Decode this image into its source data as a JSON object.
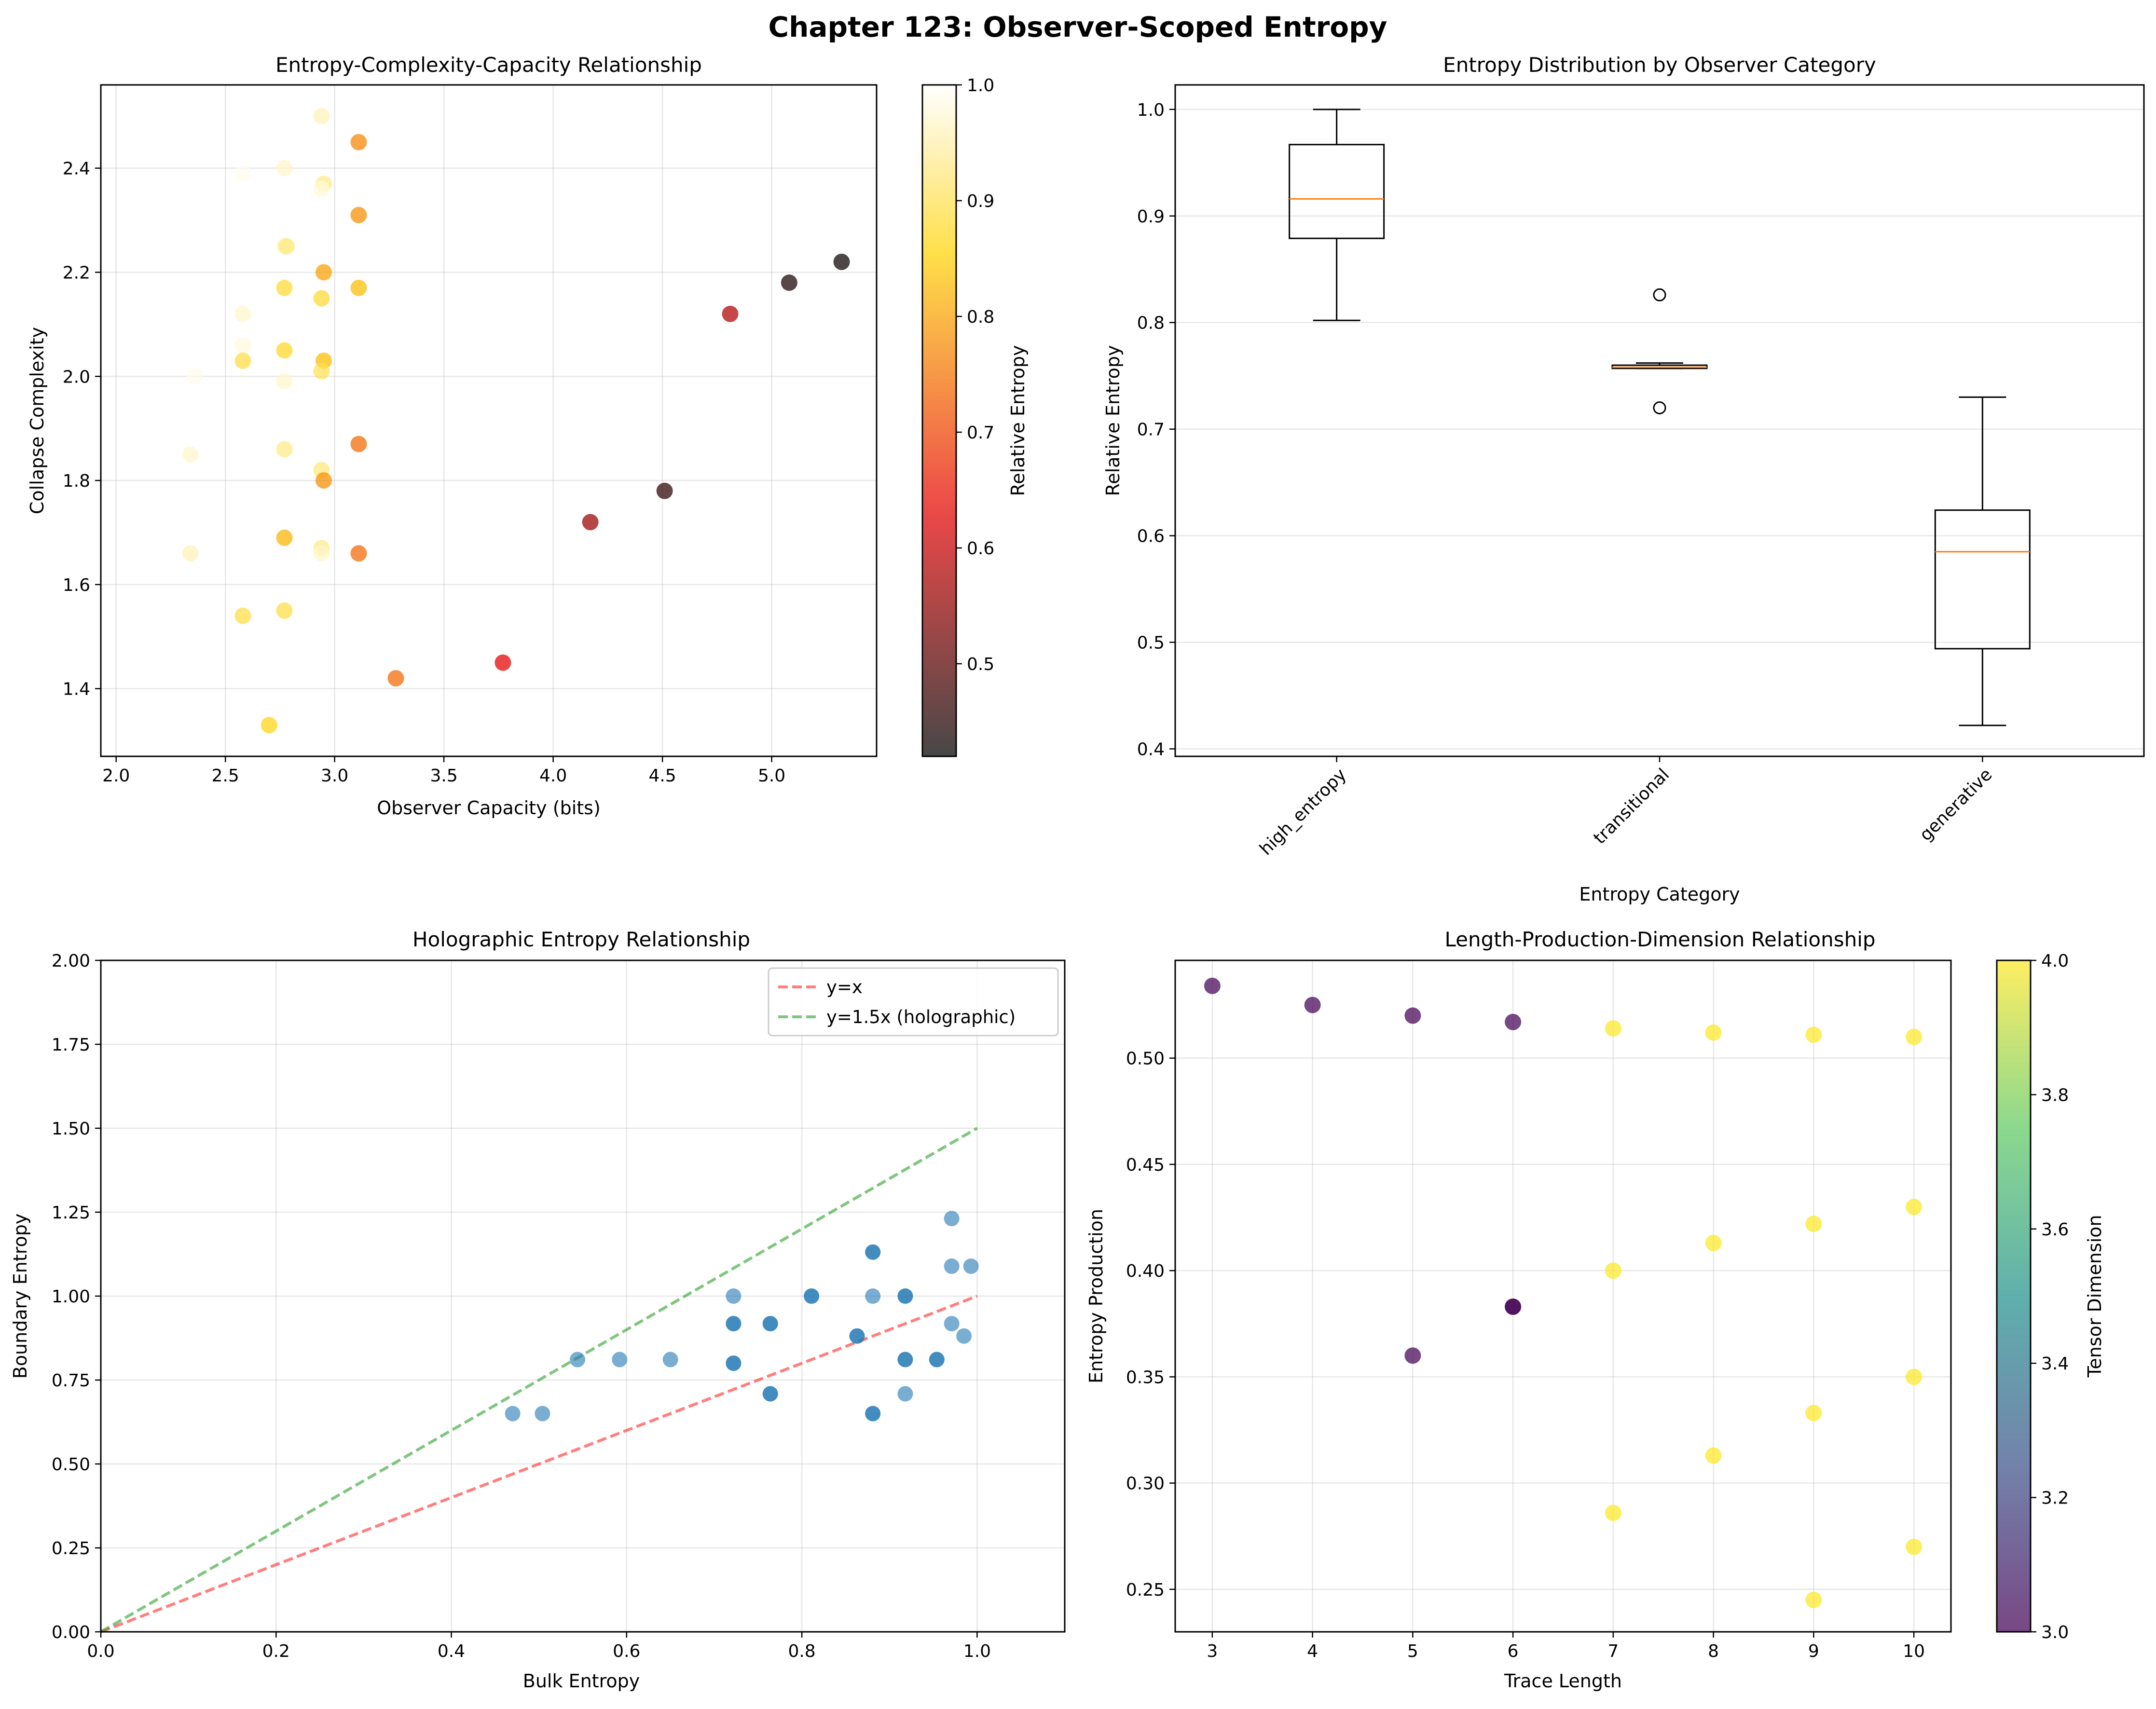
{
  "figure": {
    "title": "Chapter 123: Observer-Scoped Entropy"
  },
  "colors": {
    "grid": "#b0b0b0",
    "red_line": "#ff0000",
    "green_line": "#2ca02c",
    "blue_points": "#1f77b4",
    "median": "#ff7f0e"
  },
  "chart_data": [
    {
      "id": "p1",
      "type": "scatter",
      "title": "Entropy-Complexity-Capacity Relationship",
      "xlabel": "Observer Capacity (bits)",
      "ylabel": "Collapse Complexity",
      "xlim": [
        1.93,
        5.48
      ],
      "ylim": [
        1.27,
        2.56
      ],
      "xticks": [
        "2.0",
        "2.5",
        "3.0",
        "3.5",
        "4.0",
        "4.5",
        "5.0"
      ],
      "xtick_values": [
        2.0,
        2.5,
        3.0,
        3.5,
        4.0,
        4.5,
        5.0
      ],
      "yticks": [
        "1.4",
        "1.6",
        "1.8",
        "2.0",
        "2.2",
        "2.4"
      ],
      "ytick_values": [
        1.4,
        1.6,
        1.8,
        2.0,
        2.2,
        2.4
      ],
      "colorbar": {
        "label": "Relative Entropy",
        "range": [
          0.42,
          1.0
        ],
        "ticks": [
          "0.5",
          "0.6",
          "0.7",
          "0.8",
          "0.9",
          "1.0"
        ],
        "tick_values": [
          0.5,
          0.6,
          0.7,
          0.8,
          0.9,
          1.0
        ]
      },
      "points": [
        [
          2.94,
          2.5,
          0.96
        ],
        [
          3.11,
          2.45,
          0.77
        ],
        [
          2.58,
          2.39,
          0.99
        ],
        [
          2.77,
          2.4,
          0.97
        ],
        [
          2.95,
          2.37,
          0.93
        ],
        [
          2.94,
          2.36,
          0.98
        ],
        [
          3.11,
          2.31,
          0.78
        ],
        [
          2.77,
          2.25,
          0.97
        ],
        [
          2.78,
          2.25,
          0.92
        ],
        [
          5.32,
          2.22,
          0.43
        ],
        [
          2.95,
          2.2,
          0.8
        ],
        [
          5.08,
          2.18,
          0.44
        ],
        [
          2.77,
          2.17,
          0.88
        ],
        [
          3.11,
          2.17,
          0.83
        ],
        [
          2.94,
          2.15,
          0.88
        ],
        [
          2.58,
          2.12,
          0.97
        ],
        [
          4.81,
          2.12,
          0.58
        ],
        [
          2.58,
          2.06,
          0.98
        ],
        [
          2.77,
          2.05,
          0.87
        ],
        [
          2.58,
          2.03,
          0.89
        ],
        [
          2.95,
          2.03,
          0.83
        ],
        [
          2.94,
          2.01,
          0.9
        ],
        [
          2.36,
          2.0,
          0.99
        ],
        [
          2.77,
          1.99,
          0.97
        ],
        [
          2.34,
          1.85,
          0.97
        ],
        [
          2.77,
          1.86,
          0.93
        ],
        [
          3.11,
          1.87,
          0.74
        ],
        [
          2.94,
          1.82,
          0.92
        ],
        [
          2.95,
          1.8,
          0.78
        ],
        [
          4.51,
          1.78,
          0.46
        ],
        [
          4.17,
          1.72,
          0.56
        ],
        [
          2.77,
          1.69,
          0.82
        ],
        [
          2.94,
          1.67,
          0.93
        ],
        [
          2.34,
          1.66,
          0.96
        ],
        [
          3.11,
          1.66,
          0.74
        ],
        [
          2.94,
          1.66,
          0.97
        ],
        [
          2.58,
          1.54,
          0.89
        ],
        [
          2.77,
          1.55,
          0.89
        ],
        [
          3.77,
          1.45,
          0.63
        ],
        [
          3.28,
          1.42,
          0.74
        ],
        [
          2.7,
          1.33,
          0.86
        ]
      ]
    },
    {
      "id": "p2",
      "type": "box",
      "title": "Entropy Distribution by Observer Category",
      "xlabel": "Entropy Category",
      "ylabel": "Relative Entropy",
      "ylim": [
        0.393,
        1.023
      ],
      "yticks": [
        "0.4",
        "0.5",
        "0.6",
        "0.7",
        "0.8",
        "0.9",
        "1.0"
      ],
      "ytick_values": [
        0.4,
        0.5,
        0.6,
        0.7,
        0.8,
        0.9,
        1.0
      ],
      "categories": [
        "high_entropy",
        "transitional",
        "generative"
      ],
      "boxes": [
        {
          "whislo": 0.802,
          "q1": 0.879,
          "med": 0.916,
          "q3": 0.967,
          "whishi": 1.0,
          "fliers": []
        },
        {
          "whislo": 0.757,
          "q1": 0.757,
          "med": 0.758,
          "q3": 0.76,
          "whishi": 0.762,
          "fliers": [
            0.826,
            0.72
          ]
        },
        {
          "whislo": 0.422,
          "q1": 0.494,
          "med": 0.585,
          "q3": 0.624,
          "whishi": 0.73,
          "fliers": []
        }
      ]
    },
    {
      "id": "p3",
      "type": "scatter",
      "title": "Holographic Entropy Relationship",
      "xlabel": "Bulk Entropy",
      "ylabel": "Boundary Entropy",
      "xlim": [
        0,
        1.1
      ],
      "ylim": [
        0,
        2.0
      ],
      "xticks": [
        "0.0",
        "0.2",
        "0.4",
        "0.6",
        "0.8",
        "1.0"
      ],
      "xtick_values": [
        0.0,
        0.2,
        0.4,
        0.6,
        0.8,
        1.0
      ],
      "yticks": [
        "0.00",
        "0.25",
        "0.50",
        "0.75",
        "1.00",
        "1.25",
        "1.50",
        "1.75",
        "2.00"
      ],
      "ytick_values": [
        0.0,
        0.25,
        0.5,
        0.75,
        1.0,
        1.25,
        1.5,
        1.75,
        2.0
      ],
      "legend": [
        "y=x",
        "y=1.5x (holographic)"
      ],
      "lines": [
        {
          "name": "y=x",
          "slope": 1.0
        },
        {
          "name": "y=1.5x (holographic)",
          "slope": 1.5
        }
      ],
      "points": [
        [
          0.47,
          0.65
        ],
        [
          0.504,
          0.65
        ],
        [
          0.544,
          0.811
        ],
        [
          0.592,
          0.811
        ],
        [
          0.65,
          0.811
        ],
        [
          0.722,
          1.0
        ],
        [
          0.722,
          0.918
        ],
        [
          0.722,
          0.918
        ],
        [
          0.722,
          0.8
        ],
        [
          0.722,
          0.8
        ],
        [
          0.764,
          0.918
        ],
        [
          0.764,
          0.918
        ],
        [
          0.764,
          0.709
        ],
        [
          0.764,
          0.709
        ],
        [
          0.811,
          1.0
        ],
        [
          0.811,
          1.0
        ],
        [
          0.863,
          0.881
        ],
        [
          0.863,
          0.881
        ],
        [
          0.881,
          1.131
        ],
        [
          0.881,
          1.131
        ],
        [
          0.881,
          1.0
        ],
        [
          0.881,
          0.65
        ],
        [
          0.881,
          0.65
        ],
        [
          0.918,
          1.0
        ],
        [
          0.918,
          1.0
        ],
        [
          0.918,
          0.811
        ],
        [
          0.918,
          0.811
        ],
        [
          0.918,
          0.709
        ],
        [
          0.954,
          0.811
        ],
        [
          0.954,
          0.811
        ],
        [
          0.971,
          1.231
        ],
        [
          0.971,
          1.089
        ],
        [
          0.971,
          0.918
        ],
        [
          0.985,
          0.881
        ],
        [
          0.993,
          1.089
        ]
      ]
    },
    {
      "id": "p4",
      "type": "scatter",
      "title": "Length-Production-Dimension Relationship",
      "xlabel": "Trace Length",
      "ylabel": "Entropy Production",
      "xlim": [
        2.63,
        10.37
      ],
      "ylim": [
        0.23,
        0.546
      ],
      "xticks": [
        "3",
        "4",
        "5",
        "6",
        "7",
        "8",
        "9",
        "10"
      ],
      "xtick_values": [
        3,
        4,
        5,
        6,
        7,
        8,
        9,
        10
      ],
      "yticks": [
        "0.25",
        "0.30",
        "0.35",
        "0.40",
        "0.45",
        "0.50"
      ],
      "ytick_values": [
        0.25,
        0.3,
        0.35,
        0.4,
        0.45,
        0.5
      ],
      "colorbar": {
        "label": "Tensor Dimension",
        "range": [
          3.0,
          4.0
        ],
        "ticks": [
          "3.0",
          "3.2",
          "3.4",
          "3.6",
          "3.8",
          "4.0"
        ],
        "tick_values": [
          3.0,
          3.2,
          3.4,
          3.6,
          3.8,
          4.0
        ]
      },
      "points": [
        [
          3,
          0.534,
          3
        ],
        [
          4,
          0.525,
          3
        ],
        [
          5,
          0.52,
          3
        ],
        [
          6,
          0.517,
          3
        ],
        [
          5,
          0.36,
          3
        ],
        [
          6,
          0.383,
          3
        ],
        [
          6,
          0.383,
          3
        ],
        [
          7,
          0.514,
          4
        ],
        [
          8,
          0.512,
          4
        ],
        [
          9,
          0.511,
          4
        ],
        [
          10,
          0.51,
          4
        ],
        [
          7,
          0.4,
          4
        ],
        [
          8,
          0.413,
          4
        ],
        [
          9,
          0.422,
          4
        ],
        [
          10,
          0.43,
          4
        ],
        [
          7,
          0.286,
          4
        ],
        [
          8,
          0.313,
          4
        ],
        [
          9,
          0.333,
          4
        ],
        [
          10,
          0.35,
          4
        ],
        [
          9,
          0.245,
          4
        ],
        [
          10,
          0.27,
          4
        ]
      ]
    }
  ]
}
